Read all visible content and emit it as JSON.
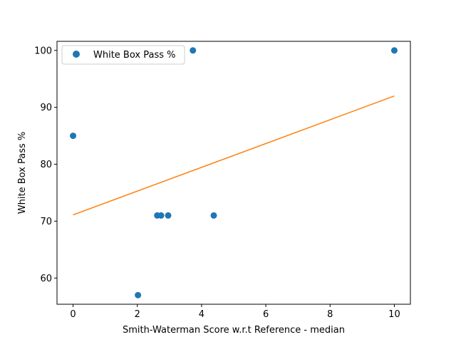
{
  "chart_data": {
    "type": "scatter",
    "title": "",
    "xlabel": "Smith-Waterman Score w.r.t Reference - median",
    "ylabel": "White Box Pass %",
    "xlim": [
      -0.5,
      10.5
    ],
    "ylim": [
      55.4,
      101.6
    ],
    "xticks": [
      0,
      2,
      4,
      6,
      8,
      10
    ],
    "yticks": [
      60,
      70,
      80,
      90,
      100
    ],
    "grid": false,
    "legend_position": "upper-left",
    "series": [
      {
        "name": "White Box Pass %",
        "kind": "scatter",
        "color": "#1f77b4",
        "points": [
          {
            "x": 0.0,
            "y": 85
          },
          {
            "x": 2.02,
            "y": 57
          },
          {
            "x": 2.62,
            "y": 71
          },
          {
            "x": 2.74,
            "y": 71
          },
          {
            "x": 2.96,
            "y": 71
          },
          {
            "x": 3.73,
            "y": 100
          },
          {
            "x": 4.38,
            "y": 71
          },
          {
            "x": 10.0,
            "y": 100
          }
        ]
      },
      {
        "kind": "line",
        "color": "#ff7f0e",
        "points": [
          {
            "x": 0.0,
            "y": 71.1
          },
          {
            "x": 10.0,
            "y": 92.0
          }
        ]
      }
    ]
  }
}
